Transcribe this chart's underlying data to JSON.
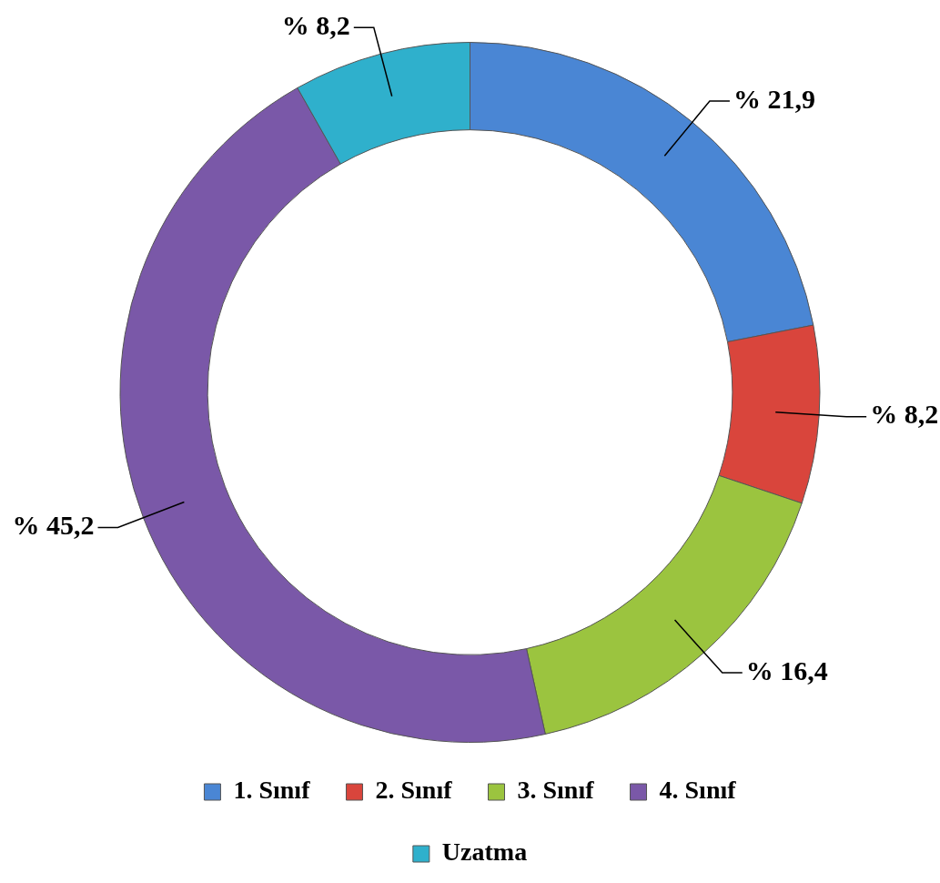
{
  "chart_data": {
    "type": "donut",
    "categories": [
      "1. Sınıf",
      "2. Sınıf",
      "3. Sınıf",
      "4. Sınıf",
      "Uzatma"
    ],
    "values": [
      21.9,
      8.2,
      16.4,
      45.2,
      8.2
    ],
    "value_labels": [
      "% 21,9",
      "% 8,2",
      "% 16,4",
      "% 45,2",
      "% 8,2"
    ],
    "colors": [
      "#4a86d4",
      "#d9453c",
      "#9bc43f",
      "#7a58a8",
      "#2fb0cc"
    ],
    "legend": "bottom"
  }
}
